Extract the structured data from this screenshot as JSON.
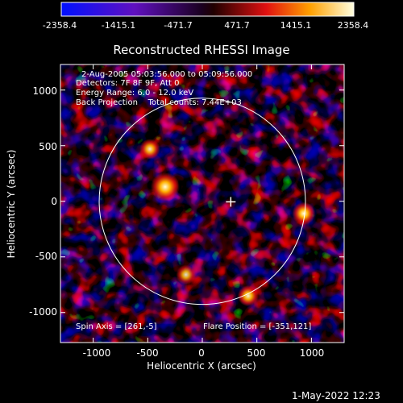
{
  "chart_data": {
    "type": "heatmap",
    "title": "Reconstructed RHESSI Image",
    "xlabel": "Heliocentric X (arcsec)",
    "ylabel": "Heliocentric Y (arcsec)",
    "xlim": [
      -1300,
      1300
    ],
    "ylim": [
      -1270,
      1230
    ],
    "xticks": [
      "-1000",
      "-500",
      "0",
      "500",
      "1000"
    ],
    "yticks": [
      "1000",
      "500",
      "0",
      "-500",
      "-1000"
    ],
    "colorbar": {
      "ticks": [
        "-2358.4",
        "-1415.1",
        "-471.7",
        "471.7",
        "1415.1",
        "2358.4"
      ],
      "range": [
        -2358.4,
        2358.4
      ]
    },
    "info_lines": [
      "2-Aug-2005 05:03:56.000 to 05:09:56.000",
      "Detectors: 7F 8F 9F, Att 0",
      "Energy Range: 6.0 - 12.0 keV",
      "Back Projection    Total counts: 7.44E+03"
    ],
    "spin_axis": "Spin Axis = [261,-5]",
    "flare_position": "Flare Position = [-351,121]",
    "solar_disk_radius": 945,
    "sources": [
      {
        "x": -340,
        "y": 130,
        "value": 2358.4
      },
      {
        "x": 930,
        "y": -110,
        "value": 1500
      },
      {
        "x": -480,
        "y": 470,
        "value": 1100
      },
      {
        "x": 420,
        "y": -850,
        "value": 1200
      },
      {
        "x": -150,
        "y": -660,
        "value": 1000
      }
    ]
  },
  "timestamp": "1-May-2022 12:23",
  "colors": {
    "background": "#000000",
    "disk_outline": "#ffffff"
  }
}
